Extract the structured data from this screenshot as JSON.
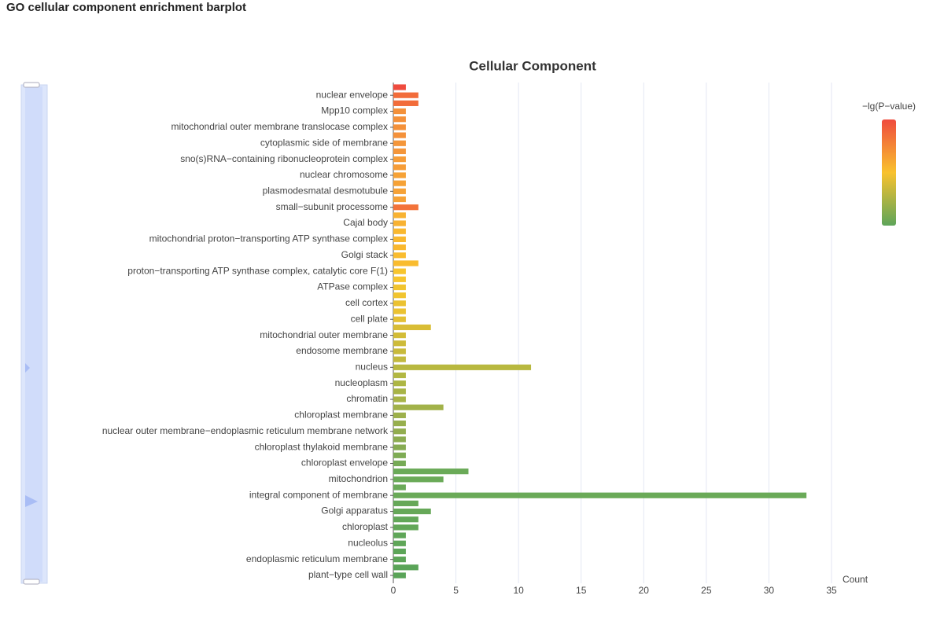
{
  "page_title": "GO cellular component enrichment barplot",
  "chart_data": {
    "type": "hbar",
    "title": "Cellular Component",
    "x_label": "Count",
    "xlim": [
      0,
      35
    ],
    "xticks": [
      0,
      5,
      10,
      15,
      20,
      25,
      30,
      35
    ],
    "grid": true,
    "categories": [
      null,
      "nuclear envelope",
      null,
      "Mpp10 complex",
      null,
      "mitochondrial outer membrane translocase complex",
      null,
      "cytoplasmic side of membrane",
      null,
      "sno(s)RNA−containing ribonucleoprotein complex",
      null,
      "nuclear chromosome",
      null,
      "plasmodesmatal desmotubule",
      null,
      "small−subunit processome",
      null,
      "Cajal body",
      null,
      "mitochondrial proton−transporting ATP synthase complex",
      null,
      "Golgi stack",
      null,
      "proton−transporting ATP synthase complex, catalytic core F(1)",
      null,
      "ATPase complex",
      null,
      "cell cortex",
      null,
      "cell plate",
      null,
      "mitochondrial outer membrane",
      null,
      "endosome membrane",
      null,
      "nucleus",
      null,
      "nucleoplasm",
      null,
      "chromatin",
      null,
      "chloroplast membrane",
      null,
      "nuclear outer membrane−endoplasmic reticulum membrane network",
      null,
      "chloroplast thylakoid membrane",
      null,
      "chloroplast envelope",
      null,
      "mitochondrion",
      null,
      "integral component of membrane",
      null,
      "Golgi apparatus",
      null,
      "chloroplast",
      null,
      "nucleolus",
      null,
      "endoplasmic reticulum membrane",
      null,
      "plant−type cell wall"
    ],
    "values": [
      1,
      2,
      2,
      1,
      1,
      1,
      1,
      1,
      1,
      1,
      1,
      1,
      1,
      1,
      1,
      2,
      1,
      1,
      1,
      1,
      1,
      1,
      2,
      1,
      1,
      1,
      1,
      1,
      1,
      1,
      3,
      1,
      1,
      1,
      1,
      11,
      1,
      1,
      1,
      1,
      4,
      1,
      1,
      1,
      1,
      1,
      1,
      1,
      6,
      4,
      1,
      33,
      2,
      3,
      2,
      2,
      1,
      1,
      1,
      1,
      2,
      1
    ],
    "colors": [
      "#ef4b3e",
      "#f26c3a",
      "#f26c3a",
      "#f4913a",
      "#f4913a",
      "#f4913a",
      "#f4913a",
      "#f4963a",
      "#f4963a",
      "#f69d38",
      "#f69d38",
      "#f6a236",
      "#f6a236",
      "#f6a236",
      "#f6a236",
      "#f3733a",
      "#f8b232",
      "#f8b232",
      "#f9b82f",
      "#f9b82f",
      "#f9b82f",
      "#f9bc2f",
      "#f9bc2f",
      "#f7c52e",
      "#f7c52e",
      "#f1c42f",
      "#f1c42f",
      "#ebc231",
      "#ebc231",
      "#e4c033",
      "#d9bd35",
      "#d3bc37",
      "#cdbb39",
      "#c8ba3b",
      "#c2b93d",
      "#b8b83f",
      "#b2b742",
      "#adb644",
      "#a8b447",
      "#a8b447",
      "#a2b249",
      "#9db04b",
      "#97af4d",
      "#92ad4f",
      "#8cac51",
      "#86ab52",
      "#7eab54",
      "#76aa56",
      "#6aaa58",
      "#6aaa58",
      "#6aaa58",
      "#6aaa58",
      "#66a858",
      "#66a858",
      "#62a758",
      "#62a758",
      "#5fa658",
      "#5fa658",
      "#5ca558",
      "#5ca558",
      "#5aa458",
      "#5aa458"
    ],
    "visual_map": {
      "title": "−lg(P−value)",
      "colors": [
        "#ef4b3e",
        "#f9c22e",
        "#5ea55a"
      ]
    }
  }
}
